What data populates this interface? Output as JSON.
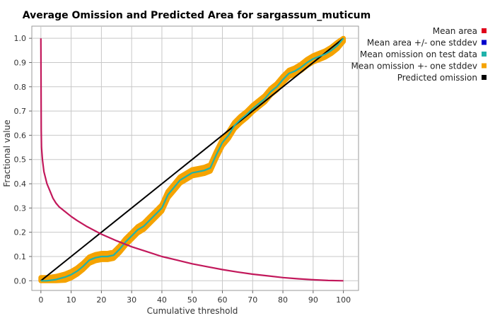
{
  "chart_data": {
    "type": "line",
    "title": "Average Omission and Predicted Area for sargassum_muticum",
    "xlabel": "Cumulative threshold",
    "ylabel": "Fractional value",
    "xlim": [
      -3,
      105
    ],
    "ylim": [
      -0.04,
      1.05
    ],
    "x_ticks": [
      0,
      10,
      20,
      30,
      40,
      50,
      60,
      70,
      80,
      90,
      100
    ],
    "x_tick_labels": [
      "0",
      "10",
      "20",
      "30",
      "40",
      "50",
      "60",
      "70",
      "80",
      "90",
      "100"
    ],
    "y_ticks": [
      0.0,
      0.1,
      0.2,
      0.3,
      0.4,
      0.5,
      0.6,
      0.7,
      0.8,
      0.9,
      1.0
    ],
    "y_tick_labels": [
      "0.0",
      "0.1",
      "0.2",
      "0.3",
      "0.4",
      "0.5",
      "0.6",
      "0.7",
      "0.8",
      "0.9",
      "1.0"
    ],
    "grid": true,
    "legend_position": "right",
    "legend": [
      {
        "label": "Mean area",
        "color": "#e0001b"
      },
      {
        "label": "Mean area +/- one stddev",
        "color": "#0000cc"
      },
      {
        "label": "Mean omission on test data",
        "color": "#20b2aa"
      },
      {
        "label": "Mean omission +- one stddev",
        "color": "#f5a300"
      },
      {
        "label": "Predicted omission",
        "color": "#000000"
      }
    ],
    "series": [
      {
        "name": "Mean area",
        "color": "#c2185b",
        "x": [
          0,
          0.1,
          0.2,
          0.5,
          1,
          2,
          3,
          4,
          5,
          6,
          8,
          10,
          12,
          15,
          18,
          20,
          25,
          30,
          35,
          40,
          45,
          50,
          55,
          60,
          65,
          70,
          75,
          80,
          85,
          90,
          95,
          100
        ],
        "y": [
          1.0,
          0.62,
          0.55,
          0.5,
          0.45,
          0.4,
          0.37,
          0.34,
          0.32,
          0.305,
          0.285,
          0.265,
          0.248,
          0.225,
          0.205,
          0.192,
          0.165,
          0.14,
          0.12,
          0.1,
          0.085,
          0.07,
          0.058,
          0.046,
          0.036,
          0.027,
          0.02,
          0.013,
          0.008,
          0.004,
          0.001,
          0.0
        ]
      },
      {
        "name": "Mean omission on test data",
        "color": "#20b2aa",
        "band_color": "#f5a300",
        "band_halfwidth": 0.013,
        "x": [
          0,
          2,
          5,
          8,
          10,
          12,
          14,
          16,
          18,
          20,
          22,
          24,
          26,
          28,
          30,
          32,
          34,
          36,
          38,
          40,
          42,
          44,
          46,
          48,
          50,
          52,
          54,
          56,
          58,
          60,
          62,
          64,
          66,
          68,
          70,
          72,
          74,
          76,
          78,
          80,
          82,
          84,
          86,
          88,
          90,
          92,
          94,
          96,
          98,
          100
        ],
        "y": [
          0.0,
          0.0,
          0.005,
          0.015,
          0.025,
          0.04,
          0.06,
          0.085,
          0.095,
          0.1,
          0.1,
          0.105,
          0.13,
          0.16,
          0.185,
          0.21,
          0.225,
          0.25,
          0.275,
          0.3,
          0.355,
          0.385,
          0.415,
          0.43,
          0.445,
          0.45,
          0.455,
          0.465,
          0.52,
          0.57,
          0.6,
          0.64,
          0.665,
          0.685,
          0.71,
          0.73,
          0.75,
          0.78,
          0.8,
          0.83,
          0.855,
          0.865,
          0.88,
          0.9,
          0.915,
          0.925,
          0.935,
          0.95,
          0.97,
          1.0
        ]
      },
      {
        "name": "Predicted omission",
        "color": "#000000",
        "x": [
          0,
          100
        ],
        "y": [
          0,
          1
        ]
      }
    ]
  }
}
